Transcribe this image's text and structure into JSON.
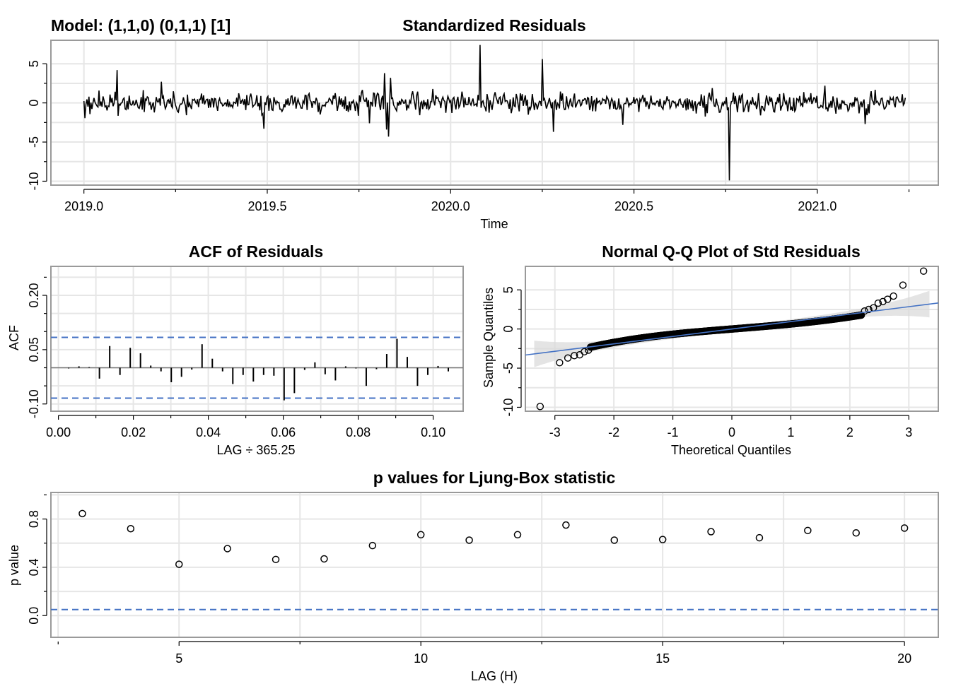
{
  "model_label": "Model: (1,1,0) (0,1,1) [1]",
  "colors": {
    "series": "#000000",
    "grid": "#e6e6e6",
    "frame": "#9a9a9a",
    "bound": "#4472c4",
    "ci_band": "#d9d9d9"
  },
  "chart_data": [
    {
      "id": "residuals",
      "type": "line",
      "title": "Standardized Residuals",
      "xlabel": "Time",
      "ylabel": "",
      "xlim": [
        2018.91,
        2021.33
      ],
      "ylim": [
        -10.5,
        8
      ],
      "xticks": [
        2019.0,
        2019.5,
        2020.0,
        2020.5,
        2021.0
      ],
      "xtick_labels": [
        "2019.0",
        "2019.5",
        "2020.0",
        "2020.5",
        "2021.0"
      ],
      "yticks": [
        5,
        0,
        -5,
        -10
      ],
      "ytick_labels": [
        "5",
        "0",
        "-5",
        "-10"
      ],
      "grid": true,
      "x_start": 2019.0,
      "x_end": 2021.24,
      "spikes": [
        {
          "x": 2019.09,
          "y": 4.2
        },
        {
          "x": 2019.21,
          "y": 2.7
        },
        {
          "x": 2019.49,
          "y": -3.3
        },
        {
          "x": 2019.78,
          "y": -2.6
        },
        {
          "x": 2019.82,
          "y": 3.8
        },
        {
          "x": 2019.825,
          "y": -3.4
        },
        {
          "x": 2019.83,
          "y": -4.3
        },
        {
          "x": 2019.835,
          "y": 3.2
        },
        {
          "x": 2020.08,
          "y": 7.4
        },
        {
          "x": 2020.25,
          "y": 5.6
        },
        {
          "x": 2020.28,
          "y": -3.7
        },
        {
          "x": 2020.47,
          "y": -2.8
        },
        {
          "x": 2020.76,
          "y": -9.9
        },
        {
          "x": 2021.02,
          "y": 2.2
        },
        {
          "x": 2021.13,
          "y": -2.7
        }
      ]
    },
    {
      "id": "acf",
      "type": "bar",
      "title": "ACF of Residuals",
      "xlabel": "LAG ÷ 365.25",
      "ylabel": "ACF",
      "xlim": [
        -0.002,
        0.108
      ],
      "ylim": [
        -0.12,
        0.28
      ],
      "xticks": [
        0.0,
        0.02,
        0.04,
        0.06,
        0.08,
        0.1
      ],
      "xtick_labels": [
        "0.00",
        "0.02",
        "0.04",
        "0.06",
        "0.08",
        "0.10"
      ],
      "yticks": [
        0.2,
        0.05,
        -0.1
      ],
      "ytick_labels": [
        "0.20",
        "0.05",
        "-0.10"
      ],
      "bounds": [
        0.084,
        -0.084
      ],
      "grid": true,
      "x": [
        0.00274,
        0.00548,
        0.00821,
        0.01095,
        0.01369,
        0.01643,
        0.01917,
        0.0219,
        0.02464,
        0.02738,
        0.03012,
        0.03285,
        0.03559,
        0.03833,
        0.04107,
        0.04381,
        0.04654,
        0.04928,
        0.05202,
        0.05476,
        0.0575,
        0.06023,
        0.06297,
        0.06571,
        0.06845,
        0.07118,
        0.07392,
        0.07666,
        0.0794,
        0.08214,
        0.08487,
        0.08761,
        0.09035,
        0.09309,
        0.09582,
        0.09856,
        0.1013,
        0.10404
      ],
      "values": [
        -0.002,
        0.004,
        0.002,
        -0.03,
        0.06,
        -0.02,
        0.055,
        0.04,
        0.006,
        -0.01,
        -0.04,
        -0.025,
        -0.005,
        0.065,
        0.025,
        -0.01,
        -0.045,
        -0.02,
        -0.038,
        -0.02,
        -0.022,
        -0.09,
        -0.07,
        -0.006,
        0.015,
        -0.018,
        -0.035,
        0.004,
        -0.002,
        -0.05,
        -0.004,
        0.038,
        0.08,
        0.03,
        -0.05,
        -0.02,
        0.005,
        -0.01
      ]
    },
    {
      "id": "qq",
      "type": "scatter",
      "title": "Normal Q-Q Plot of Std Residuals",
      "xlabel": "Theoretical Quantiles",
      "ylabel": "Sample Quantiles",
      "xlim": [
        -3.5,
        3.5
      ],
      "ylim": [
        -10.5,
        8
      ],
      "xticks": [
        -3,
        -2,
        -1,
        0,
        1,
        2,
        3
      ],
      "xtick_labels": [
        "-3",
        "-2",
        "-1",
        "0",
        "1",
        "2",
        "3"
      ],
      "yticks": [
        5,
        0,
        -5,
        -10
      ],
      "ytick_labels": [
        "5",
        "0",
        "-5",
        "-10"
      ],
      "grid": true,
      "reference_line": {
        "slope": 0.95,
        "intercept": 0.0
      },
      "outliers": [
        [
          -3.25,
          -9.9
        ],
        [
          -2.92,
          -4.3
        ],
        [
          -2.78,
          -3.7
        ],
        [
          -2.67,
          -3.4
        ],
        [
          -2.58,
          -3.3
        ],
        [
          -2.5,
          -2.9
        ],
        [
          -2.43,
          -2.7
        ],
        [
          2.25,
          2.3
        ],
        [
          2.32,
          2.5
        ],
        [
          2.4,
          2.7
        ],
        [
          2.48,
          3.3
        ],
        [
          2.56,
          3.5
        ],
        [
          2.64,
          3.8
        ],
        [
          2.74,
          4.2
        ],
        [
          2.9,
          5.6
        ],
        [
          3.25,
          7.4
        ]
      ]
    },
    {
      "id": "ljung_box",
      "type": "scatter",
      "title": "p values for Ljung-Box statistic",
      "xlabel": "LAG (H)",
      "ylabel": "p value",
      "xlim": [
        2.35,
        20.7
      ],
      "ylim": [
        -0.18,
        1.02
      ],
      "xticks": [
        5,
        10,
        15,
        20
      ],
      "xtick_labels": [
        "5",
        "10",
        "15",
        "20"
      ],
      "yticks": [
        0.8,
        0.4,
        0.0
      ],
      "ytick_labels": [
        "0.8",
        "0.4",
        "0.0"
      ],
      "significance_line": 0.05,
      "grid": true,
      "x": [
        3,
        4,
        5,
        6,
        7,
        8,
        9,
        10,
        11,
        12,
        13,
        14,
        15,
        16,
        17,
        18,
        19,
        20
      ],
      "values": [
        0.845,
        0.72,
        0.425,
        0.555,
        0.465,
        0.47,
        0.58,
        0.67,
        0.625,
        0.67,
        0.75,
        0.625,
        0.63,
        0.695,
        0.645,
        0.705,
        0.685,
        0.725
      ]
    }
  ]
}
